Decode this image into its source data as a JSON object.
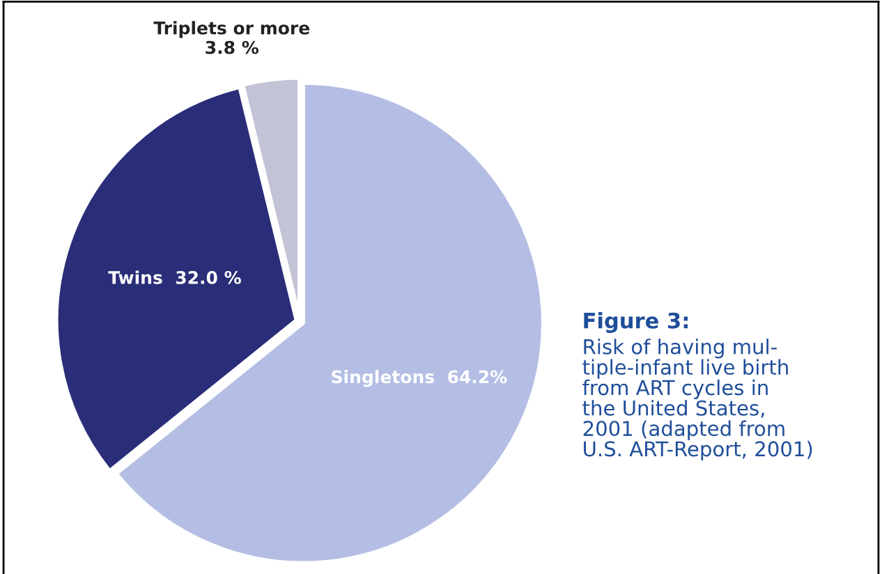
{
  "chart_data": {
    "type": "pie",
    "title": "Figure 3:",
    "categories": [
      "Singletons",
      "Twins",
      "Triplets or more"
    ],
    "values": [
      64.2,
      32.0,
      3.8
    ],
    "value_labels": [
      "64.2%",
      "32.0 %",
      "3.8 %"
    ],
    "colors": [
      "#b4bee4",
      "#2a2d78",
      "#c3c3d6"
    ],
    "annotations": [
      "Risk of having mul-\ntiple-infant live birth\nfrom ART cycles in\nthe United States,\n2001 (adapted from\nU.S. ART-Report, 2001)"
    ],
    "legend": false
  }
}
